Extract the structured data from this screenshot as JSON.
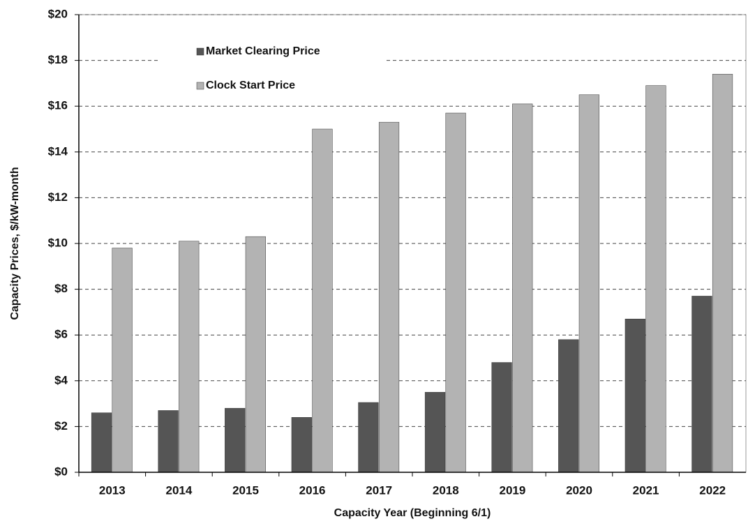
{
  "chart_data": {
    "type": "bar",
    "x_label": "Capacity Year (Beginning 6/1)",
    "y_label": "Capacity Prices, $/kW-month",
    "categories": [
      "2013",
      "2014",
      "2015",
      "2016",
      "2017",
      "2018",
      "2019",
      "2020",
      "2021",
      "2022"
    ],
    "series": [
      {
        "name": "Market Clearing Price",
        "color": "#555555",
        "values": [
          2.6,
          2.7,
          2.8,
          2.4,
          3.05,
          3.5,
          4.8,
          5.8,
          6.7,
          7.7
        ]
      },
      {
        "name": "Clock Start Price",
        "color": "#b3b3b3",
        "values": [
          9.8,
          10.1,
          10.3,
          15.0,
          15.3,
          15.7,
          16.1,
          16.5,
          16.9,
          17.4
        ]
      }
    ],
    "ylim": [
      0,
      20
    ],
    "yticks": [
      {
        "value": 0,
        "label": "$0"
      },
      {
        "value": 2,
        "label": "$2"
      },
      {
        "value": 4,
        "label": "$4"
      },
      {
        "value": 6,
        "label": "$6"
      },
      {
        "value": 8,
        "label": "$8"
      },
      {
        "value": 10,
        "label": "$10"
      },
      {
        "value": 12,
        "label": "$12"
      },
      {
        "value": 14,
        "label": "$14"
      },
      {
        "value": 16,
        "label": "$16"
      },
      {
        "value": 18,
        "label": "$18"
      },
      {
        "value": 20,
        "label": "$20"
      }
    ],
    "grid": true
  }
}
